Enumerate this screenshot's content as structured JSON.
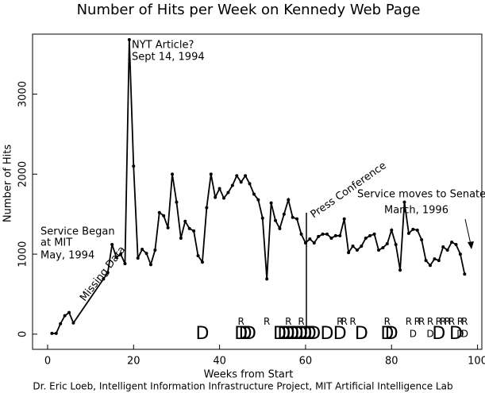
{
  "chart_data": {
    "type": "line",
    "title": "Number of Hits per Week on Kennedy Web Page",
    "x_label": "Weeks from Start",
    "y_label": "Number of Hits",
    "footer": "Dr. Eric Loeb, Intelligent Information Infrastructure Project, MIT Artificial Intelligence Lab",
    "x": [
      1,
      2,
      3,
      4,
      5,
      6,
      13,
      14,
      15,
      16,
      17,
      18,
      19,
      20,
      21,
      22,
      23,
      24,
      25,
      26,
      27,
      28,
      29,
      30,
      31,
      32,
      33,
      34,
      35,
      36,
      37,
      38,
      39,
      40,
      41,
      42,
      43,
      44,
      45,
      46,
      47,
      48,
      49,
      50,
      51,
      52,
      53,
      54,
      55,
      56,
      57,
      58,
      59,
      60,
      61,
      62,
      63,
      64,
      65,
      66,
      67,
      68,
      69,
      70,
      71,
      72,
      73,
      74,
      75,
      76,
      77,
      78,
      79,
      80,
      81,
      82,
      83,
      84,
      85,
      86,
      87,
      88,
      89,
      90,
      91,
      92,
      93,
      94,
      95,
      96,
      97
    ],
    "series": [
      {
        "name": "Hits",
        "color": "#000000",
        "values": [
          10,
          10,
          130,
          230,
          270,
          140,
          690,
          770,
          1120,
          960,
          1000,
          880,
          3680,
          2100,
          950,
          1060,
          1010,
          870,
          1050,
          1520,
          1480,
          1330,
          2000,
          1650,
          1200,
          1410,
          1320,
          1290,
          980,
          900,
          1580,
          2000,
          1710,
          1820,
          1700,
          1770,
          1860,
          1980,
          1900,
          1980,
          1880,
          1750,
          1680,
          1450,
          690,
          1640,
          1420,
          1320,
          1500,
          1680,
          1460,
          1440,
          1250,
          1140,
          1190,
          1140,
          1220,
          1250,
          1250,
          1200,
          1230,
          1230,
          1440,
          1020,
          1100,
          1050,
          1100,
          1200,
          1230,
          1250,
          1050,
          1080,
          1130,
          1300,
          1120,
          800,
          1650,
          1260,
          1310,
          1300,
          1180,
          920,
          860,
          940,
          920,
          1090,
          1050,
          1150,
          1120,
          1000,
          750
        ]
      }
    ],
    "markers": [
      {
        "x": 36,
        "y": 0,
        "label": "D",
        "size": "large"
      },
      {
        "x": 45,
        "y": 0,
        "label": "D",
        "size": "large"
      },
      {
        "x": 46,
        "y": 0,
        "label": "D",
        "size": "large"
      },
      {
        "x": 47,
        "y": 0,
        "label": "D",
        "size": "large"
      },
      {
        "x": 54,
        "y": 0,
        "label": "D",
        "size": "large"
      },
      {
        "x": 55,
        "y": 0,
        "label": "D",
        "size": "large"
      },
      {
        "x": 56,
        "y": 0,
        "label": "D",
        "size": "large"
      },
      {
        "x": 57,
        "y": 0,
        "label": "D",
        "size": "large"
      },
      {
        "x": 58,
        "y": 0,
        "label": "D",
        "size": "large"
      },
      {
        "x": 59,
        "y": 0,
        "label": "D",
        "size": "large"
      },
      {
        "x": 60,
        "y": 0,
        "label": "D",
        "size": "large"
      },
      {
        "x": 61,
        "y": 0,
        "label": "D",
        "size": "large"
      },
      {
        "x": 62,
        "y": 0,
        "label": "D",
        "size": "large"
      },
      {
        "x": 65,
        "y": 0,
        "label": "D",
        "size": "large"
      },
      {
        "x": 68,
        "y": 0,
        "label": "D",
        "size": "large"
      },
      {
        "x": 73,
        "y": 0,
        "label": "D",
        "size": "large"
      },
      {
        "x": 79,
        "y": 0,
        "label": "D",
        "size": "large"
      },
      {
        "x": 80,
        "y": 0,
        "label": "D",
        "size": "large"
      },
      {
        "x": 91,
        "y": 0,
        "label": "D",
        "size": "large"
      },
      {
        "x": 95,
        "y": 0,
        "label": "D",
        "size": "large"
      },
      {
        "x": 85,
        "y": 0,
        "label": "D",
        "size": "small"
      },
      {
        "x": 89,
        "y": 0,
        "label": "D",
        "size": "small"
      },
      {
        "x": 96,
        "y": 0,
        "label": "D",
        "size": "small"
      },
      {
        "x": 97,
        "y": 0,
        "label": "D",
        "size": "small"
      },
      {
        "x": 45,
        "y": 150,
        "label": "R",
        "size": "small"
      },
      {
        "x": 51,
        "y": 150,
        "label": "R",
        "size": "small"
      },
      {
        "x": 56,
        "y": 150,
        "label": "R",
        "size": "small"
      },
      {
        "x": 59,
        "y": 150,
        "label": "R",
        "size": "small"
      },
      {
        "x": 68,
        "y": 150,
        "label": "R",
        "size": "small"
      },
      {
        "x": 69,
        "y": 150,
        "label": "R",
        "size": "small"
      },
      {
        "x": 71,
        "y": 150,
        "label": "R",
        "size": "small"
      },
      {
        "x": 79,
        "y": 150,
        "label": "R",
        "size": "small"
      },
      {
        "x": 84,
        "y": 150,
        "label": "R",
        "size": "small"
      },
      {
        "x": 86,
        "y": 150,
        "label": "R",
        "size": "small"
      },
      {
        "x": 87,
        "y": 150,
        "label": "R",
        "size": "small"
      },
      {
        "x": 89,
        "y": 150,
        "label": "R",
        "size": "small"
      },
      {
        "x": 91,
        "y": 150,
        "label": "R",
        "size": "small"
      },
      {
        "x": 92,
        "y": 150,
        "label": "R",
        "size": "small"
      },
      {
        "x": 93,
        "y": 150,
        "label": "R",
        "size": "small"
      },
      {
        "x": 94,
        "y": 150,
        "label": "R",
        "size": "small"
      },
      {
        "x": 96,
        "y": 150,
        "label": "R",
        "size": "small"
      },
      {
        "x": 97,
        "y": 150,
        "label": "R",
        "size": "small"
      }
    ],
    "annotations": [
      {
        "text": "NYT Article?"
      },
      {
        "text": "Sept 14, 1994"
      },
      {
        "text": "Service Began"
      },
      {
        "text": "at MIT"
      },
      {
        "text": "May, 1994"
      },
      {
        "text": "Missing Data"
      },
      {
        "text": "Press Conference"
      },
      {
        "text": "Service moves to Senate"
      },
      {
        "text": "March, 1996"
      }
    ],
    "xlim": [
      -3.5,
      101
    ],
    "ylim": [
      -190,
      3750
    ],
    "xticks": [
      0,
      20,
      40,
      60,
      80,
      100
    ],
    "yticks": [
      0,
      1000,
      2000,
      3000
    ],
    "grid": false
  }
}
